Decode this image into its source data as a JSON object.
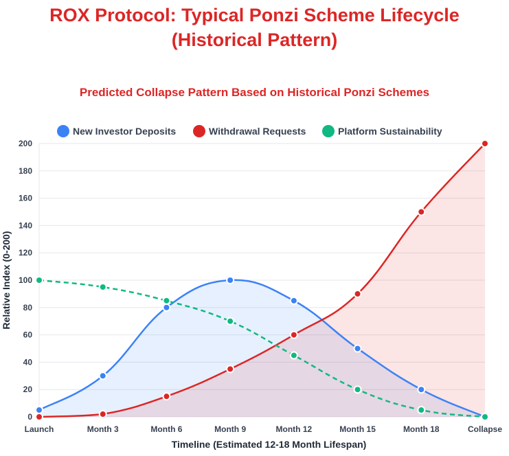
{
  "chart_data": {
    "type": "line",
    "title": "ROX Protocol: Typical Ponzi Scheme Lifecycle (Historical Pattern)",
    "title_lines": [
      "ROX Protocol: Typical Ponzi Scheme Lifecycle",
      "(Historical Pattern)"
    ],
    "subtitle": "Predicted Collapse Pattern Based on Historical Ponzi Schemes",
    "xlabel": "Timeline (Estimated 12-18 Month Lifespan)",
    "ylabel": "Relative Index (0-200)",
    "ylim": [
      0,
      200
    ],
    "yticks": [
      0,
      20,
      40,
      60,
      80,
      100,
      120,
      140,
      160,
      180,
      200
    ],
    "grid": true,
    "legend_position": "top",
    "categories": [
      "Launch",
      "Month 3",
      "Month 6",
      "Month 9",
      "Month 12",
      "Month 15",
      "Month 18",
      "Collapse"
    ],
    "series": [
      {
        "name": "New Investor Deposits",
        "values": [
          5,
          30,
          80,
          100,
          85,
          50,
          20,
          0
        ],
        "color": "#3b82f6",
        "fill": "rgba(59,130,246,0.12)",
        "dashed": false
      },
      {
        "name": "Withdrawal Requests",
        "values": [
          0,
          2,
          15,
          35,
          60,
          90,
          150,
          200
        ],
        "color": "#dc2626",
        "fill": "rgba(220,38,38,0.12)",
        "dashed": false
      },
      {
        "name": "Platform Sustainability",
        "values": [
          100,
          95,
          85,
          70,
          45,
          20,
          5,
          0
        ],
        "color": "#10b981",
        "fill": null,
        "dashed": true
      }
    ]
  }
}
